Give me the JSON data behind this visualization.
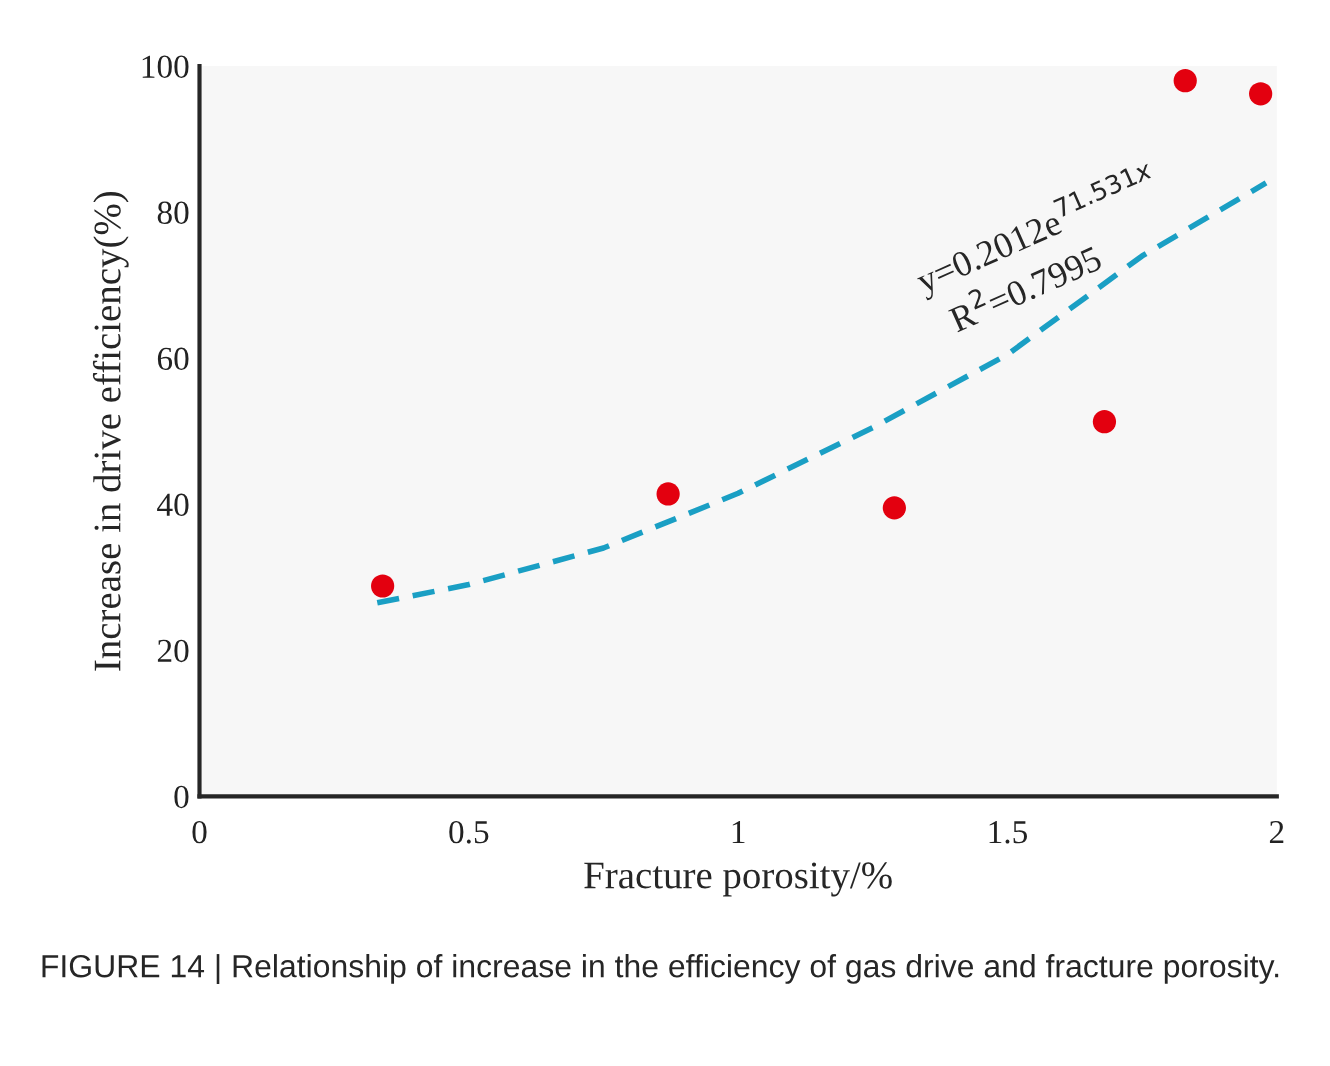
{
  "chart_data": {
    "type": "scatter",
    "xlabel": "Fracture porosity/%",
    "ylabel": "Increase in drive efficiency(%)",
    "series": [
      {
        "color": "#e3000f",
        "marker": "circle",
        "x": [
          0.34,
          0.87,
          1.29,
          1.68,
          1.83,
          1.97
        ],
        "values": [
          28.8,
          41.4,
          39.5,
          51.3,
          98,
          96.2
        ]
      },
      {
        "type": "line",
        "color": "#1a9fc4",
        "line_style": "dashed",
        "marker": "none",
        "x": [
          0.33,
          0.5,
          0.75,
          1.0,
          1.25,
          1.5,
          1.75,
          1.98
        ],
        "values": [
          26.5,
          29,
          34,
          41.5,
          50.5,
          60.5,
          74,
          84
        ]
      }
    ],
    "xlim": [
      0,
      2
    ],
    "xticks": [
      0,
      0.5,
      1,
      1.5,
      2
    ],
    "ylim": [
      0,
      100
    ],
    "yticks": [
      0,
      20,
      40,
      60,
      80,
      100
    ],
    "grid": false,
    "legend": false,
    "annotations": [
      {
        "text": "y=0.2012e$^{71.531x}$",
        "x": 1.5,
        "y": 60.5
      },
      {
        "text": "R$^{2}$=0.7995",
        "x": 1.5,
        "y": 60.5
      },
      "FIGURE 14 | Relationship of increase in the efficiency of gas drive and fracture porosity."
    ]
  }
}
